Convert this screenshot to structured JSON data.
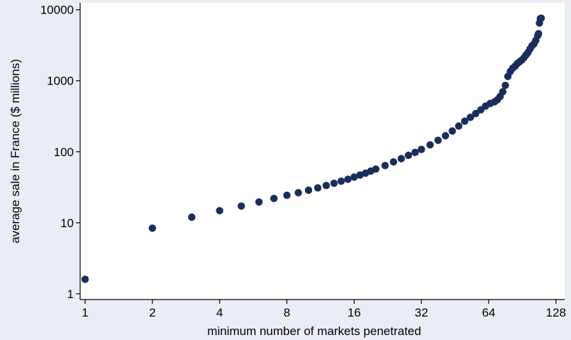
{
  "chart_data": {
    "type": "scatter",
    "xlabel": "minimum number of markets penetrated",
    "ylabel": "average sale in France ($ millions)",
    "x_scale": "log2",
    "y_scale": "log10",
    "xlim": [
      0.95,
      140
    ],
    "ylim": [
      0.83,
      12500
    ],
    "x_ticks": [
      1,
      2,
      4,
      8,
      16,
      32,
      64,
      128
    ],
    "x_tick_labels": [
      "1",
      "2",
      "4",
      "8",
      "16",
      "32",
      "64",
      "128"
    ],
    "y_ticks": [
      1,
      10,
      100,
      1000,
      10000
    ],
    "y_tick_labels": [
      "1",
      "10",
      "100",
      "1000",
      "10000"
    ],
    "grid": false,
    "legend": "none",
    "marker_color": "#1a2e5c",
    "series": [
      {
        "x": [
          1,
          2,
          3,
          4,
          5,
          6,
          7,
          8,
          9,
          10,
          11,
          12,
          13,
          14,
          15,
          16,
          17,
          18,
          19,
          20,
          22,
          24,
          26,
          28,
          30,
          32,
          35,
          38,
          41,
          44,
          47,
          50,
          53,
          56,
          59,
          62,
          65,
          68,
          70,
          72,
          74,
          76,
          78,
          80,
          82,
          84,
          86,
          88,
          90,
          92,
          94,
          96,
          98,
          100,
          102,
          104,
          106,
          107,
          108,
          109,
          110
        ],
        "y": [
          1.6,
          8.4,
          12,
          14.8,
          17.2,
          19.6,
          22,
          24.4,
          26.5,
          28.8,
          31,
          33.5,
          36,
          38.5,
          41,
          44,
          47,
          50,
          53.5,
          57,
          64,
          72,
          80,
          89,
          98,
          108,
          125,
          145,
          168,
          196,
          230,
          270,
          305,
          345,
          390,
          440,
          480,
          505,
          540,
          600,
          700,
          860,
          1150,
          1350,
          1500,
          1600,
          1750,
          1850,
          1950,
          2100,
          2300,
          2500,
          2800,
          3100,
          3300,
          3700,
          4300,
          4600,
          6500,
          7500,
          7600
        ]
      }
    ]
  }
}
